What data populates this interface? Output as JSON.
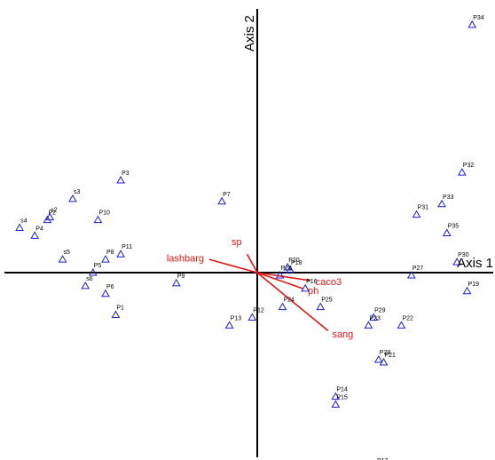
{
  "chart_data": {
    "type": "scatter",
    "title": "",
    "xlabel": "Axis 1",
    "ylabel": "Axis 2",
    "xlim": [
      -1.0,
      0.93
    ],
    "ylim": [
      -0.78,
      1.0
    ],
    "grid": false,
    "colors": {
      "points": "#1f1fd0",
      "vectors": "#e01818",
      "axes": "#000000"
    },
    "marker": "open-triangle",
    "points": [
      {
        "label": "P34",
        "x": 0.85,
        "y": 0.94
      },
      {
        "label": "P32",
        "x": 0.81,
        "y": 0.38
      },
      {
        "label": "P33",
        "x": 0.73,
        "y": 0.26
      },
      {
        "label": "P31",
        "x": 0.63,
        "y": 0.22
      },
      {
        "label": "P35",
        "x": 0.75,
        "y": 0.15
      },
      {
        "label": "P30",
        "x": 0.79,
        "y": 0.04
      },
      {
        "label": "P27",
        "x": 0.61,
        "y": -0.01
      },
      {
        "label": "P19",
        "x": 0.83,
        "y": -0.07
      },
      {
        "label": "P22",
        "x": 0.57,
        "y": -0.2
      },
      {
        "label": "P29",
        "x": 0.46,
        "y": -0.17
      },
      {
        "label": "P23",
        "x": 0.44,
        "y": -0.2
      },
      {
        "label": "P28",
        "x": 0.48,
        "y": -0.33
      },
      {
        "label": "P21",
        "x": 0.5,
        "y": -0.34
      },
      {
        "label": "P14",
        "x": 0.31,
        "y": -0.47
      },
      {
        "label": "P15",
        "x": 0.31,
        "y": -0.5
      },
      {
        "label": "P17",
        "x": 0.47,
        "y": -0.74
      },
      {
        "label": "P20",
        "x": 0.12,
        "y": 0.02
      },
      {
        "label": "P18",
        "x": 0.13,
        "y": 0.01
      },
      {
        "label": "P26",
        "x": 0.09,
        "y": -0.01
      },
      {
        "label": "P16",
        "x": 0.19,
        "y": -0.06
      },
      {
        "label": "P24",
        "x": 0.1,
        "y": -0.13
      },
      {
        "label": "P25",
        "x": 0.25,
        "y": -0.13
      },
      {
        "label": "P12",
        "x": -0.02,
        "y": -0.17
      },
      {
        "label": "P13",
        "x": -0.11,
        "y": -0.2
      },
      {
        "label": "P7",
        "x": -0.14,
        "y": 0.27
      },
      {
        "label": "P3",
        "x": -0.54,
        "y": 0.35
      },
      {
        "label": "P9",
        "x": -0.32,
        "y": -0.04
      },
      {
        "label": "P10",
        "x": -0.63,
        "y": 0.2
      },
      {
        "label": "P11",
        "x": -0.54,
        "y": 0.07
      },
      {
        "label": "P8",
        "x": -0.6,
        "y": 0.05
      },
      {
        "label": "P5",
        "x": -0.65,
        "y": 0.0
      },
      {
        "label": "P6",
        "x": -0.6,
        "y": -0.08
      },
      {
        "label": "P1",
        "x": -0.56,
        "y": -0.16
      },
      {
        "label": "P4",
        "x": -0.88,
        "y": 0.14
      },
      {
        "label": "s3",
        "x": -0.73,
        "y": 0.28
      },
      {
        "label": "s4",
        "x": -0.94,
        "y": 0.17
      },
      {
        "label": "P2",
        "x": -0.83,
        "y": 0.2
      },
      {
        "label": "s2",
        "x": -0.82,
        "y": 0.21
      },
      {
        "label": "s5",
        "x": -0.77,
        "y": 0.05
      },
      {
        "label": "s6",
        "x": -0.68,
        "y": -0.05
      }
    ],
    "vectors": [
      {
        "label": "lashbarg",
        "x": -0.19,
        "y": 0.05
      },
      {
        "label": "sp",
        "x": -0.04,
        "y": 0.07
      },
      {
        "label": "caco3",
        "x": 0.21,
        "y": -0.03
      },
      {
        "label": "ph",
        "x": 0.18,
        "y": -0.06
      },
      {
        "label": "sang",
        "x": 0.28,
        "y": -0.22
      }
    ]
  }
}
